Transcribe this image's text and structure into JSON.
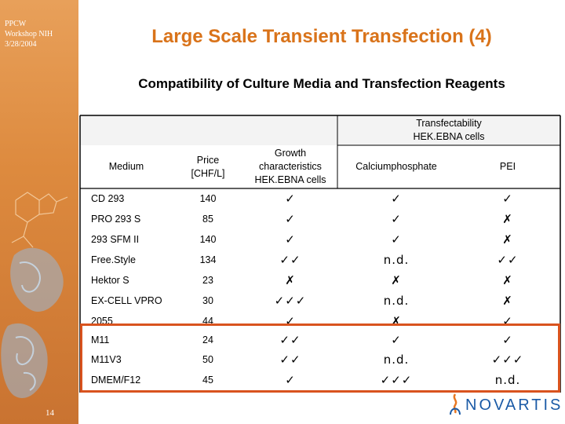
{
  "sidebar": {
    "meta": [
      "PPCW",
      "Workshop NIH",
      "3/28/2004"
    ],
    "page_number": "14"
  },
  "title": "Large Scale Transient Transfection (4)",
  "subtitle": "Compatibility of Culture Media and Transfection Reagents",
  "table": {
    "group_header": [
      "Transfectability",
      "HEK.EBNA cells"
    ],
    "headers": {
      "medium": "Medium",
      "price": [
        "Price",
        "[CHF/L]"
      ],
      "growth": [
        "Growth",
        "characteristics",
        "HEK.EBNA cells"
      ],
      "calcium": "Calciumphosphate",
      "pei": "PEI"
    },
    "rows": [
      {
        "medium": "CD 293",
        "price": "140",
        "growth": "✓",
        "calcium": "✓",
        "pei": "✓"
      },
      {
        "medium": "PRO 293 S",
        "price": "85",
        "growth": "✓",
        "calcium": "✓",
        "pei": "✗"
      },
      {
        "medium": "293 SFM II",
        "price": "140",
        "growth": "✓",
        "calcium": "✓",
        "pei": "✗"
      },
      {
        "medium": "Free.Style",
        "price": "134",
        "growth": "✓✓",
        "calcium": "n.d.",
        "pei": "✓✓"
      },
      {
        "medium": "Hektor S",
        "price": "23",
        "growth": "✗",
        "calcium": "✗",
        "pei": "✗"
      },
      {
        "medium": "EX-CELL VPRO",
        "price": "30",
        "growth": "✓✓✓",
        "calcium": "n.d.",
        "pei": "✗"
      },
      {
        "medium": "2055",
        "price": "44",
        "growth": "✓",
        "calcium": "✗",
        "pei": "✓"
      },
      {
        "medium": "M11",
        "price": "24",
        "growth": "✓✓",
        "calcium": "✓",
        "pei": "✓"
      },
      {
        "medium": "M11V3",
        "price": "50",
        "growth": "✓✓",
        "calcium": "n.d.",
        "pei": "✓✓✓"
      },
      {
        "medium": "DMEM/F12",
        "price": "45",
        "growth": "✓",
        "calcium": "✓✓✓",
        "pei": "n.d."
      }
    ]
  },
  "logo": {
    "text": "NOVARTIS",
    "color": "#1a5aa6"
  },
  "colors": {
    "title": "#d9731a",
    "sidebar": "#dd8a3e",
    "highlight": "#d9531e"
  }
}
